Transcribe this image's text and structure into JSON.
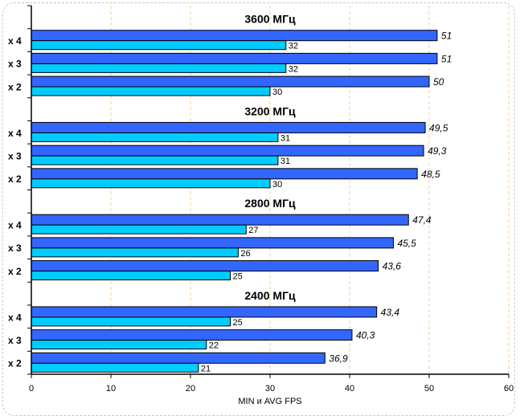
{
  "chart_data": {
    "type": "bar",
    "orientation": "horizontal",
    "xlabel": "MIN и AVG FPS",
    "xlim": [
      0,
      60
    ],
    "xticks": [
      0,
      10,
      20,
      30,
      40,
      50,
      60
    ],
    "grid": "vertical dashed",
    "colors": {
      "avg": "#3366ff",
      "min": "#00ccff",
      "grid": "#f5cf9e"
    },
    "series": [
      {
        "name": "AVG",
        "key": "avg",
        "label_style": "italic"
      },
      {
        "name": "MIN",
        "key": "min"
      }
    ],
    "groups": [
      {
        "title": "3600 МГц",
        "rows": [
          {
            "label": "x 4",
            "avg": 51,
            "avg_label": "51",
            "min": 32,
            "min_label": "32"
          },
          {
            "label": "x 3",
            "avg": 51,
            "avg_label": "51",
            "min": 32,
            "min_label": "32"
          },
          {
            "label": "x 2",
            "avg": 50,
            "avg_label": "50",
            "min": 30,
            "min_label": "30"
          }
        ]
      },
      {
        "title": "3200 МГц",
        "rows": [
          {
            "label": "x 4",
            "avg": 49.5,
            "avg_label": "49,5",
            "min": 31,
            "min_label": "31"
          },
          {
            "label": "x 3",
            "avg": 49.3,
            "avg_label": "49,3",
            "min": 31,
            "min_label": "31"
          },
          {
            "label": "x 2",
            "avg": 48.5,
            "avg_label": "48,5",
            "min": 30,
            "min_label": "30"
          }
        ]
      },
      {
        "title": "2800 МГц",
        "rows": [
          {
            "label": "x 4",
            "avg": 47.4,
            "avg_label": "47,4",
            "min": 27,
            "min_label": "27"
          },
          {
            "label": "x 3",
            "avg": 45.5,
            "avg_label": "45,5",
            "min": 26,
            "min_label": "26"
          },
          {
            "label": "x 2",
            "avg": 43.6,
            "avg_label": "43,6",
            "min": 25,
            "min_label": "25"
          }
        ]
      },
      {
        "title": "2400 МГц",
        "rows": [
          {
            "label": "x 4",
            "avg": 43.4,
            "avg_label": "43,4",
            "min": 25,
            "min_label": "25"
          },
          {
            "label": "x 3",
            "avg": 40.3,
            "avg_label": "40,3",
            "min": 22,
            "min_label": "22"
          },
          {
            "label": "x 2",
            "avg": 36.9,
            "avg_label": "36,9",
            "min": 21,
            "min_label": "21"
          }
        ]
      }
    ]
  }
}
